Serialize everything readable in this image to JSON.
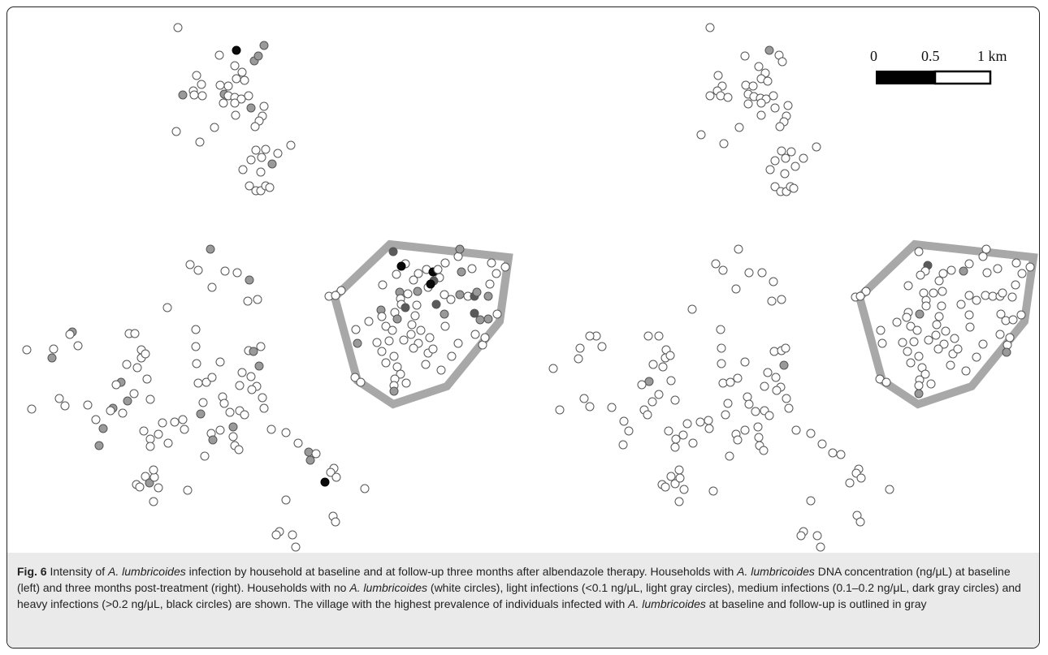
{
  "scale_bar": {
    "tick_labels": [
      "0",
      "0.5",
      "1 km"
    ],
    "segments_km": [
      0.5,
      0.5
    ]
  },
  "legend_colors": {
    "none": "#ffffff",
    "light": "#9a9a9a",
    "medium": "#5a5a5a",
    "heavy": "#0a0a0a",
    "outline": "#a8a8a8",
    "circle_edge": "#555555"
  },
  "caption": {
    "label": "Fig. 6",
    "text_1": " Intensity of ",
    "species_1": "A. lumbricoides",
    "text_2": " infection by household at baseline and at follow-up three months after albendazole therapy. Households with ",
    "species_2": "A. lumbricoides",
    "text_3": " DNA concentration (ng/μL) at baseline (left) and three months post-treatment (right). Households with no ",
    "species_3": "A. lumbricoides",
    "text_4": " (white circles), light infections (<0.1 ng/μL, light gray circles), medium infections (0.1–0.2 ng/μL, dark gray circles) and heavy infections (>0.2 ng/μL, black circles) are shown. The village with the highest prevalence of individuals infected with ",
    "species_4": "A. lumbricoides",
    "text_5": " at baseline and follow-up is outlined in gray"
  }
}
